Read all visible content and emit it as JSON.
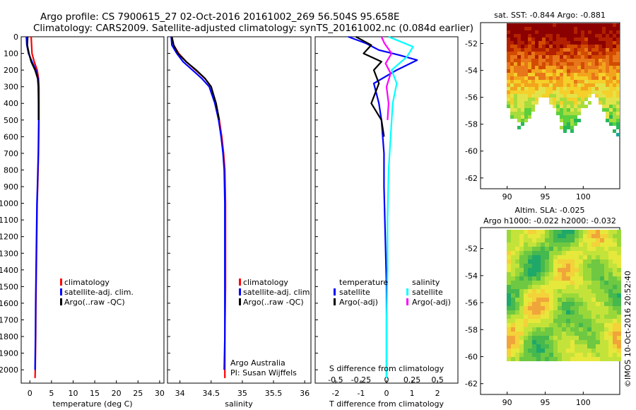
{
  "header": {
    "line1": "Argo profile: CS 7900615_27 02-Oct-2016 20161002_269 56.504S 95.658E",
    "line2": "Climatology: CARS2009. Satellite-adjusted climatology: synTS_20161002.nc (0.084d earlier)"
  },
  "colors": {
    "climatology": "#ff0000",
    "satellite": "#0000ff",
    "argo": "#000000",
    "satellite_s": "#00ffff",
    "argo_s": "#ff00ff"
  },
  "chart_data": [
    {
      "id": "temperature",
      "type": "line",
      "xlabel": "temperature (deg C)",
      "ylabel": "",
      "xlim": [
        -2,
        31
      ],
      "ylim": [
        2080,
        0
      ],
      "xticks": [
        0,
        5,
        10,
        15,
        20,
        25,
        30
      ],
      "xtick_labels": [
        "0",
        "5",
        "10",
        "15",
        "20",
        "25",
        "30"
      ],
      "yticks": [
        0,
        100,
        200,
        300,
        400,
        500,
        600,
        700,
        800,
        900,
        1000,
        1100,
        1200,
        1300,
        1400,
        1500,
        1600,
        1700,
        1800,
        1900,
        2000
      ],
      "ytick_labels": [
        "0",
        "100",
        "200",
        "300",
        "400",
        "500",
        "600",
        "700",
        "800",
        "900",
        "1000",
        "1100",
        "1200",
        "1300",
        "1400",
        "1500",
        "1600",
        "1700",
        "1800",
        "1900",
        "2000"
      ],
      "series": [
        {
          "name": "climatology",
          "color_key": "climatology",
          "x": [
            0.3,
            0.4,
            0.5,
            1.0,
            1.7,
            2.0,
            2.1,
            2.1,
            2.1,
            2.05,
            2.0,
            1.9,
            1.8,
            1.7,
            1.6,
            1.5,
            1.4,
            1.35,
            1.3,
            1.25,
            1.2
          ],
          "y": [
            0,
            50,
            100,
            150,
            200,
            250,
            300,
            400,
            500,
            600,
            700,
            800,
            900,
            1000,
            1200,
            1400,
            1600,
            1800,
            1900,
            2000,
            2050
          ]
        },
        {
          "name": "satellite-adj. clim.",
          "color_key": "satellite",
          "x": [
            -0.8,
            -0.7,
            -0.3,
            0.5,
            1.4,
            1.9,
            2.0,
            2.05,
            2.05,
            2.0,
            1.95,
            1.85,
            1.75,
            1.65,
            1.55,
            1.45,
            1.35,
            1.3,
            1.25,
            1.2
          ],
          "y": [
            0,
            50,
            100,
            150,
            200,
            250,
            300,
            400,
            500,
            600,
            700,
            800,
            900,
            1000,
            1200,
            1400,
            1600,
            1800,
            1900,
            2000
          ]
        },
        {
          "name": "Argo(..raw -QC)",
          "color_key": "argo",
          "x": [
            -0.5,
            -0.6,
            -0.2,
            0.3,
            1.2,
            1.8,
            1.95,
            2.0,
            2.0
          ],
          "y": [
            0,
            50,
            100,
            150,
            200,
            250,
            300,
            400,
            500
          ]
        }
      ],
      "legend_position": "lower-right"
    },
    {
      "id": "salinity",
      "type": "line",
      "xlabel": "salinity",
      "ylabel": "",
      "xlim": [
        33.8,
        36.1
      ],
      "ylim": [
        2080,
        0
      ],
      "xticks": [
        34,
        34.5,
        35,
        35.5,
        36
      ],
      "xtick_labels": [
        "34",
        "34.5",
        "35",
        "35.5",
        "36"
      ],
      "series": [
        {
          "name": "climatology",
          "color_key": "climatology",
          "x": [
            33.87,
            33.9,
            33.98,
            34.1,
            34.25,
            34.4,
            34.5,
            34.57,
            34.63,
            34.67,
            34.7,
            34.72,
            34.73,
            34.73,
            34.73,
            34.72,
            34.72,
            34.72
          ],
          "y": [
            0,
            50,
            100,
            150,
            200,
            250,
            300,
            400,
            500,
            600,
            700,
            800,
            1000,
            1200,
            1500,
            1800,
            1900,
            2050
          ]
        },
        {
          "name": "satellite-adj. clim.",
          "color_key": "satellite",
          "x": [
            33.86,
            33.87,
            33.95,
            34.05,
            34.2,
            34.35,
            34.47,
            34.56,
            34.62,
            34.66,
            34.69,
            34.71,
            34.72,
            34.72,
            34.72,
            34.72,
            34.71
          ],
          "y": [
            0,
            50,
            100,
            150,
            200,
            250,
            300,
            400,
            500,
            600,
            700,
            800,
            1000,
            1200,
            1500,
            1800,
            2000
          ]
        },
        {
          "name": "Argo(..raw -QC)",
          "color_key": "argo",
          "x": [
            33.87,
            33.9,
            33.97,
            34.1,
            34.26,
            34.4,
            34.5,
            34.58,
            34.63
          ],
          "y": [
            0,
            50,
            100,
            150,
            200,
            250,
            300,
            400,
            500
          ]
        }
      ],
      "annotations": [
        "Argo Australia",
        "PI: Susan Wijffels"
      ],
      "legend_position": "lower-right"
    },
    {
      "id": "differences",
      "type": "line",
      "xlabel": "T difference from climatology",
      "x2label": "S difference from climatology",
      "ylabel": "",
      "xlim": [
        -2.8,
        2.8
      ],
      "ylim": [
        2080,
        0
      ],
      "xticks": [
        -2,
        -1,
        0,
        1,
        2
      ],
      "xtick_labels": [
        "-2",
        "-1",
        "0",
        "1",
        "2"
      ],
      "x2lim": [
        -0.7,
        0.7
      ],
      "x2ticks": [
        -0.5,
        -0.25,
        0,
        0.25,
        0.5
      ],
      "x2tick_labels": [
        "-0.5",
        "-0.25",
        "0",
        "0.25",
        "0.5"
      ],
      "series": [
        {
          "name": "temperature satellite",
          "color_key": "satellite",
          "axis": "T",
          "x": [
            -1.5,
            -0.8,
            -0.3,
            0.5,
            1.2,
            0.4,
            -0.5,
            -0.3,
            -0.2,
            -0.1,
            -0.1,
            -0.05,
            0,
            0,
            0
          ],
          "y": [
            0,
            40,
            80,
            110,
            140,
            200,
            280,
            400,
            500,
            700,
            900,
            1200,
            1500,
            1800,
            2050
          ]
        },
        {
          "name": "temperature Argo(-adj)",
          "color_key": "argo",
          "axis": "T",
          "x": [
            -1.2,
            -0.6,
            -0.9,
            -0.2,
            -0.5,
            -0.3,
            -0.6,
            -0.2,
            -0.1
          ],
          "y": [
            0,
            50,
            100,
            150,
            200,
            280,
            400,
            500,
            600
          ]
        },
        {
          "name": "salinity satellite",
          "color_key": "satellite_s",
          "axis": "S",
          "x": [
            0.02,
            0.1,
            0.26,
            0.2,
            0.05,
            0.1,
            0.06,
            0.04,
            0.02,
            0.01,
            0.01,
            0.0,
            0.0
          ],
          "y": [
            0,
            20,
            60,
            120,
            200,
            280,
            400,
            600,
            800,
            1100,
            1400,
            1700,
            2050
          ]
        },
        {
          "name": "salinity Argo(-adj)",
          "color_key": "argo_s",
          "axis": "S",
          "x": [
            -0.05,
            -0.02,
            0.05,
            -0.01,
            0.04,
            0.0,
            0.02,
            0.01
          ],
          "y": [
            0,
            40,
            100,
            160,
            220,
            300,
            400,
            500
          ]
        }
      ],
      "legend_headers": [
        "temperature",
        "salinity"
      ],
      "legend_items_t": [
        "satellite",
        "Argo(-adj)"
      ],
      "legend_items_s": [
        "satellite",
        "Argo(-adj)"
      ],
      "legend_position": "lower-center"
    }
  ],
  "maps": [
    {
      "id": "sst-map",
      "title": "sat. SST: -0.844  Argo: -0.881",
      "yticks": [
        "-52",
        "-54",
        "-56",
        "-58",
        "-60",
        "-62"
      ],
      "xticks": [
        "90",
        "95",
        "100"
      ]
    },
    {
      "id": "sla-map",
      "title1": "Altim. SLA: -0.025",
      "title2": "Argo h1000: -0.022 h2000: -0.032",
      "yticks": [
        "-52",
        "-54",
        "-56",
        "-58",
        "-60",
        "-62"
      ],
      "xticks": [
        "90",
        "95",
        "100"
      ]
    }
  ],
  "credit": "©IMOS 10-Oct-2016 20:52:40"
}
